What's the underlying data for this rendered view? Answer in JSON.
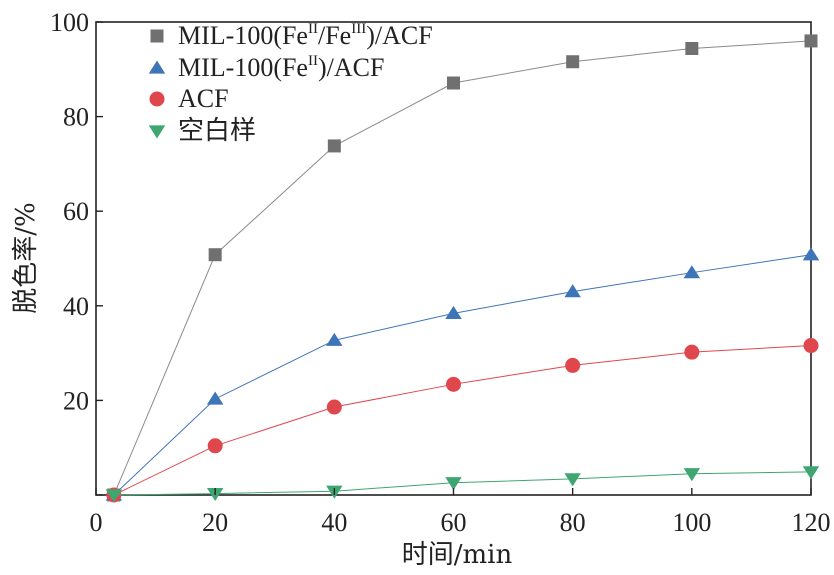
{
  "chart_data": {
    "type": "line",
    "title": "",
    "xlabel": "时间/min",
    "ylabel": "脱色率/%",
    "xlim": [
      0,
      120
    ],
    "ylim": [
      0,
      100
    ],
    "xticks": [
      0,
      20,
      40,
      60,
      80,
      100,
      120
    ],
    "yticks": [
      0,
      20,
      40,
      60,
      80,
      100
    ],
    "x_tick_labels": [
      "0",
      "20",
      "40",
      "60",
      "80",
      "100",
      "120"
    ],
    "y_tick_labels": [
      "",
      "20",
      "40",
      "60",
      "80",
      "100"
    ],
    "legend_position": "top-left",
    "series": [
      {
        "name": "MIL-100(FeII/FeIII)/ACF",
        "legend": {
          "prefix": "MIL-100(Fe",
          "sup1": "II",
          "mid": "/Fe",
          "sup2": "III",
          "suffix": ")/ACF"
        },
        "marker": "square",
        "marker_color": "#707070",
        "line_color": "#8a8a8a",
        "x": [
          3,
          20,
          40,
          60,
          80,
          100,
          120
        ],
        "values": [
          0,
          50.8,
          73.8,
          87.1,
          91.6,
          94.4,
          96.0
        ]
      },
      {
        "name": "MIL-100(FeII)/ACF",
        "legend": {
          "prefix": "MIL-100(Fe",
          "sup1": "II",
          "suffix": ")/ACF"
        },
        "marker": "triangle-up",
        "marker_color": "#3e74b8",
        "line_color": "#3e74b8",
        "x": [
          3,
          20,
          40,
          60,
          80,
          100,
          120
        ],
        "values": [
          0,
          20.3,
          32.7,
          38.4,
          43.0,
          47.0,
          50.8
        ]
      },
      {
        "name": "ACF",
        "legend": {
          "prefix": "ACF"
        },
        "marker": "circle",
        "marker_color": "#e0474d",
        "line_color": "#e0474d",
        "x": [
          3,
          20,
          40,
          60,
          80,
          100,
          120
        ],
        "values": [
          0,
          10.4,
          18.6,
          23.4,
          27.4,
          30.2,
          31.6
        ]
      },
      {
        "name": "空白样",
        "legend": {
          "prefix": "空白样"
        },
        "marker": "triangle-down",
        "marker_color": "#3fa672",
        "line_color": "#3fa672",
        "x": [
          3,
          20,
          40,
          60,
          80,
          100,
          120
        ],
        "values": [
          0,
          0.3,
          0.8,
          2.6,
          3.4,
          4.5,
          4.9
        ]
      }
    ]
  }
}
